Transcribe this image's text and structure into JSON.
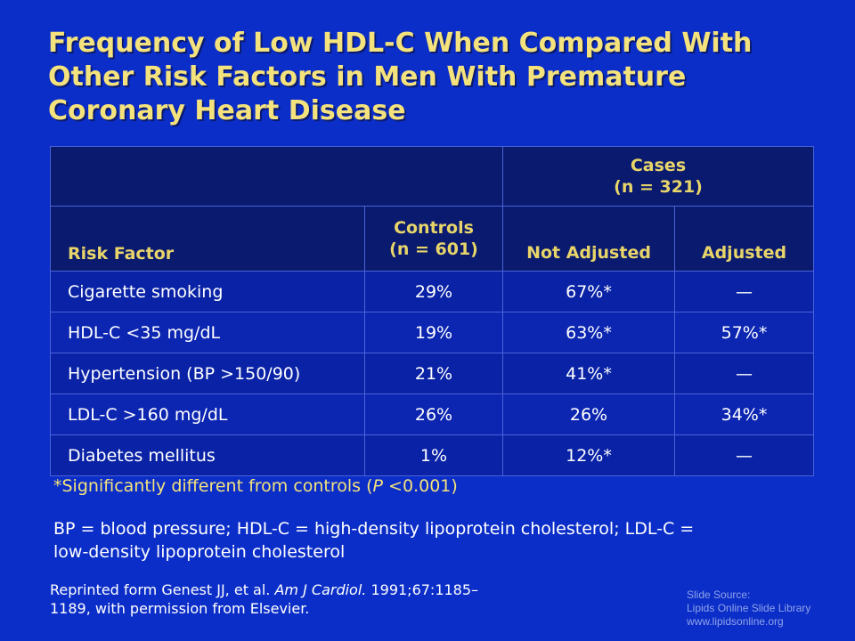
{
  "title": {
    "line1": "Frequency of Low HDL-C When Compared With",
    "line2": "Other Risk Factors in Men With Premature",
    "line3": "Coronary Heart Disease"
  },
  "table": {
    "cases_label": "Cases",
    "cases_n": "(n = 321)",
    "risk_factor_header": "Risk Factor",
    "controls_label": "Controls",
    "controls_n": "(n = 601)",
    "not_adjusted_header": "Not Adjusted",
    "adjusted_header": "Adjusted",
    "rows": [
      {
        "factor": "Cigarette smoking",
        "controls": "29%",
        "not_adjusted": "67%*",
        "adjusted": "—"
      },
      {
        "factor": "HDL-C <35 mg/dL",
        "controls": "19%",
        "not_adjusted": "63%*",
        "adjusted": "57%*"
      },
      {
        "factor": "Hypertension (BP >150/90)",
        "controls": "21%",
        "not_adjusted": "41%*",
        "adjusted": "—"
      },
      {
        "factor": "LDL-C >160 mg/dL",
        "controls": "26%",
        "not_adjusted": "26%",
        "adjusted": "34%*"
      },
      {
        "factor": "Diabetes mellitus",
        "controls": "1%",
        "not_adjusted": "12%*",
        "adjusted": "—"
      }
    ]
  },
  "footnote": {
    "prefix": "*Significantly different from controls (",
    "p": "P",
    "suffix": " <0.001)"
  },
  "abbreviations": {
    "line1": "BP = blood pressure; HDL-C = high-density lipoprotein cholesterol; LDL-C =",
    "line2": "low-density lipoprotein cholesterol"
  },
  "reprint": {
    "prefix": "Reprinted form Genest JJ, et al. ",
    "journal": "Am J Cardiol.",
    "citation": " 1991;67:1185–",
    "line2": "1189, with permission from Elsevier."
  },
  "source": {
    "line1": "Slide Source:",
    "line2": "Lipids Online Slide Library",
    "line3": "www.lipidsonline.org"
  }
}
